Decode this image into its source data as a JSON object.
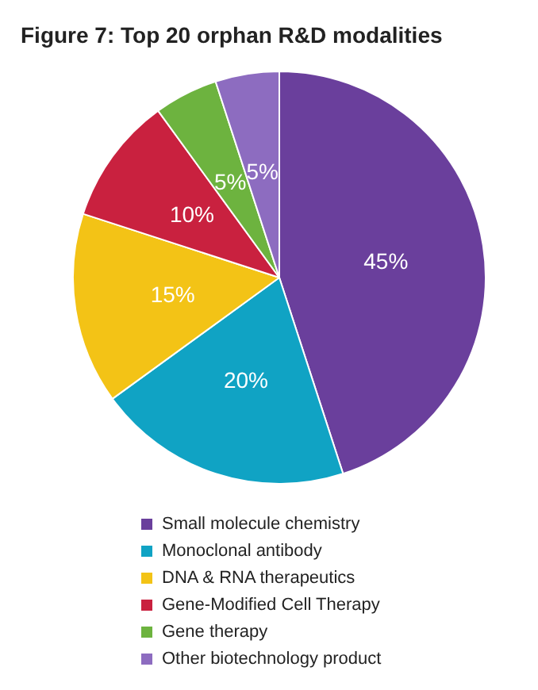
{
  "chart_data": {
    "type": "pie",
    "title": "Figure 7: Top 20 orphan R&D modalities",
    "categories": [
      "Small molecule chemistry",
      "Monoclonal antibody",
      "DNA & RNA therapeutics",
      "Gene-Modified Cell Therapy",
      "Gene therapy",
      "Other biotechnology product"
    ],
    "values": [
      45,
      20,
      15,
      10,
      5,
      5
    ],
    "colors": [
      "#6a3f9c",
      "#10a3c4",
      "#f3c316",
      "#c9213f",
      "#6db33f",
      "#8d6cc0"
    ],
    "value_labels": [
      "45%",
      "20%",
      "15%",
      "10%",
      "5%",
      "5%"
    ],
    "legend": "bottom"
  }
}
